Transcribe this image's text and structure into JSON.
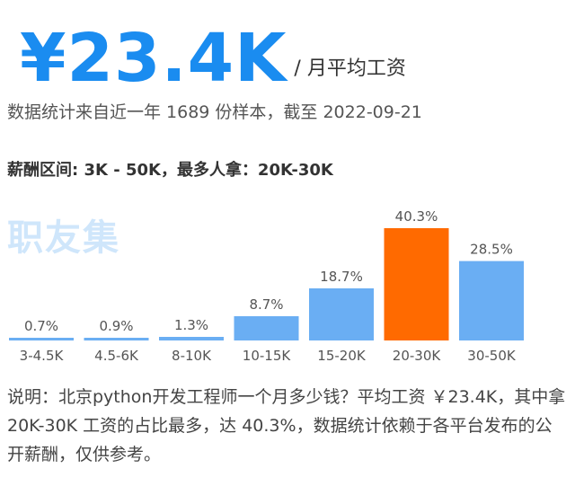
{
  "headline": {
    "average_salary": "¥23.4K",
    "suffix": "/ 月平均工资"
  },
  "source_text": "数据统计来自近一年 1689 份样本，截至 2022-09-21",
  "salary_range_text": "薪酬区间: 3K - 50K，最多人拿：20K-30K",
  "watermark_text": "职友集",
  "colors": {
    "bar_default": "#6aaef3",
    "bar_highlight": "#ff6a00",
    "headline": "#1a8cf0"
  },
  "chart_data": {
    "type": "bar",
    "categories": [
      "3-4.5K",
      "4.5-6K",
      "8-10K",
      "10-15K",
      "15-20K",
      "20-30K",
      "30-50K"
    ],
    "values": [
      0.7,
      0.9,
      1.3,
      8.7,
      18.7,
      40.3,
      28.5
    ],
    "value_labels": [
      "0.7%",
      "0.9%",
      "1.3%",
      "8.7%",
      "18.7%",
      "40.3%",
      "28.5%"
    ],
    "highlight_index": 5,
    "title": "",
    "xlabel": "",
    "ylabel": "",
    "ylim": [
      0,
      40.3
    ],
    "grid": false,
    "legend": "none"
  },
  "description": "说明：北京python开发工程师一个月多少钱？平均工资 ￥23.4K，其中拿 20K-30K 工资的占比最多，达 40.3%，数据统计依赖于各平台发布的公开薪酬，仅供参考。"
}
